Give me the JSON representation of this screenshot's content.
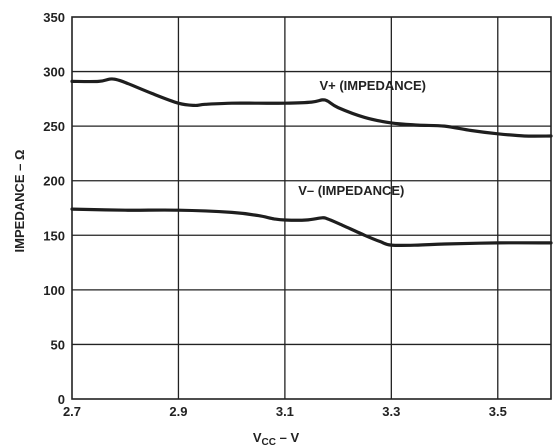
{
  "chart_data": {
    "type": "line",
    "xlabel": {
      "main": "V",
      "sub": "CC",
      "rest": " – V"
    },
    "ylabel": "IMPEDANCE – Ω",
    "xlim": [
      2.7,
      3.6
    ],
    "ylim": [
      0,
      350
    ],
    "xticks": [
      2.7,
      2.9,
      3.1,
      3.3,
      3.5
    ],
    "xtick_labels": [
      "2.7",
      "2.9",
      "3.1",
      "3.3",
      "3.5"
    ],
    "yticks": [
      0,
      50,
      100,
      150,
      200,
      250,
      300,
      350
    ],
    "ytick_labels": [
      "0",
      "50",
      "100",
      "150",
      "200",
      "250",
      "300",
      "350"
    ],
    "grid": true,
    "series": [
      {
        "name": "V+ (IMPEDANCE)",
        "x": [
          2.7,
          2.75,
          2.77,
          2.78,
          2.8,
          2.85,
          2.9,
          2.93,
          2.95,
          3.0,
          3.05,
          3.1,
          3.15,
          3.17,
          3.18,
          3.2,
          3.25,
          3.3,
          3.35,
          3.4,
          3.45,
          3.5,
          3.55,
          3.6
        ],
        "y": [
          291,
          291,
          293,
          293,
          290,
          280,
          271,
          269,
          270,
          271,
          271,
          271,
          272,
          274,
          273,
          267,
          258,
          253,
          251,
          250,
          246,
          243,
          241,
          241
        ]
      },
      {
        "name": "V– (IMPEDANCE)",
        "x": [
          2.7,
          2.8,
          2.9,
          3.0,
          3.05,
          3.08,
          3.1,
          3.14,
          3.17,
          3.18,
          3.2,
          3.25,
          3.28,
          3.3,
          3.35,
          3.4,
          3.5,
          3.6
        ],
        "y": [
          174,
          173,
          173,
          171,
          168,
          165,
          164,
          164,
          166,
          165,
          161,
          150,
          144,
          141,
          141,
          142,
          143,
          143
        ]
      }
    ]
  }
}
